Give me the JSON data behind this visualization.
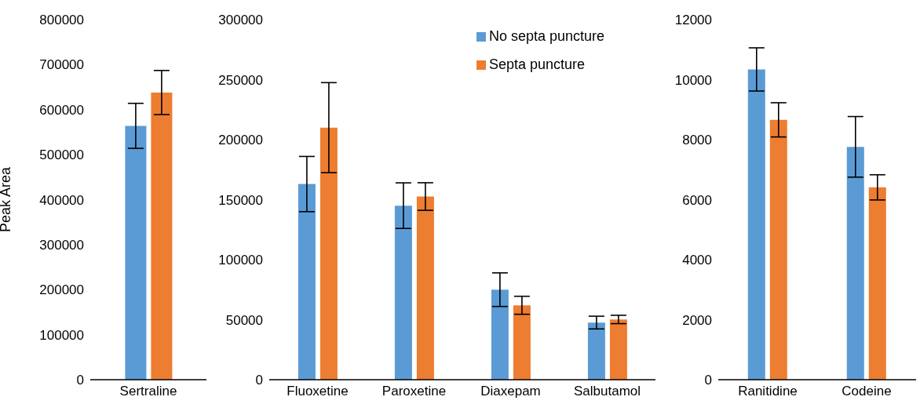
{
  "chart_data": [
    {
      "type": "bar",
      "ylabel": "Peak Area",
      "categories": [
        "Sertraline"
      ],
      "ylim": [
        0,
        800000
      ],
      "yticks": [
        0,
        100000,
        200000,
        300000,
        400000,
        500000,
        600000,
        700000,
        800000
      ],
      "grid": false,
      "series": [
        {
          "color": "#5b9bd5",
          "values": [
            564000
          ],
          "errors": [
            50000
          ]
        },
        {
          "color": "#ed7d31",
          "values": [
            638000
          ],
          "errors": [
            49000
          ]
        }
      ]
    },
    {
      "type": "bar",
      "categories": [
        "Fluoxetine",
        "Paroxetine",
        "Diaxepam",
        "Salbutamol"
      ],
      "ylim": [
        0,
        300000
      ],
      "yticks": [
        0,
        50000,
        100000,
        150000,
        200000,
        250000,
        300000
      ],
      "grid": false,
      "legend": "top right",
      "series": [
        {
          "name": "No septa puncture",
          "color": "#5b9bd5",
          "values": [
            163000,
            145000,
            75000,
            47600
          ],
          "errors": [
            23000,
            19000,
            14000,
            5300
          ]
        },
        {
          "name": "Septa puncture",
          "color": "#ed7d31",
          "values": [
            210000,
            152600,
            62000,
            50200
          ],
          "errors": [
            37500,
            11500,
            7500,
            3500
          ]
        }
      ]
    },
    {
      "type": "bar",
      "categories": [
        "Ranitidine",
        "Codeine"
      ],
      "ylim": [
        0,
        12000
      ],
      "yticks": [
        0,
        2000,
        4000,
        6000,
        8000,
        10000,
        12000
      ],
      "grid": false,
      "series": [
        {
          "color": "#5b9bd5",
          "values": [
            10340,
            7760
          ],
          "errors": [
            720,
            1010
          ]
        },
        {
          "color": "#ed7d31",
          "values": [
            8660,
            6410
          ],
          "errors": [
            570,
            420
          ]
        }
      ]
    }
  ]
}
